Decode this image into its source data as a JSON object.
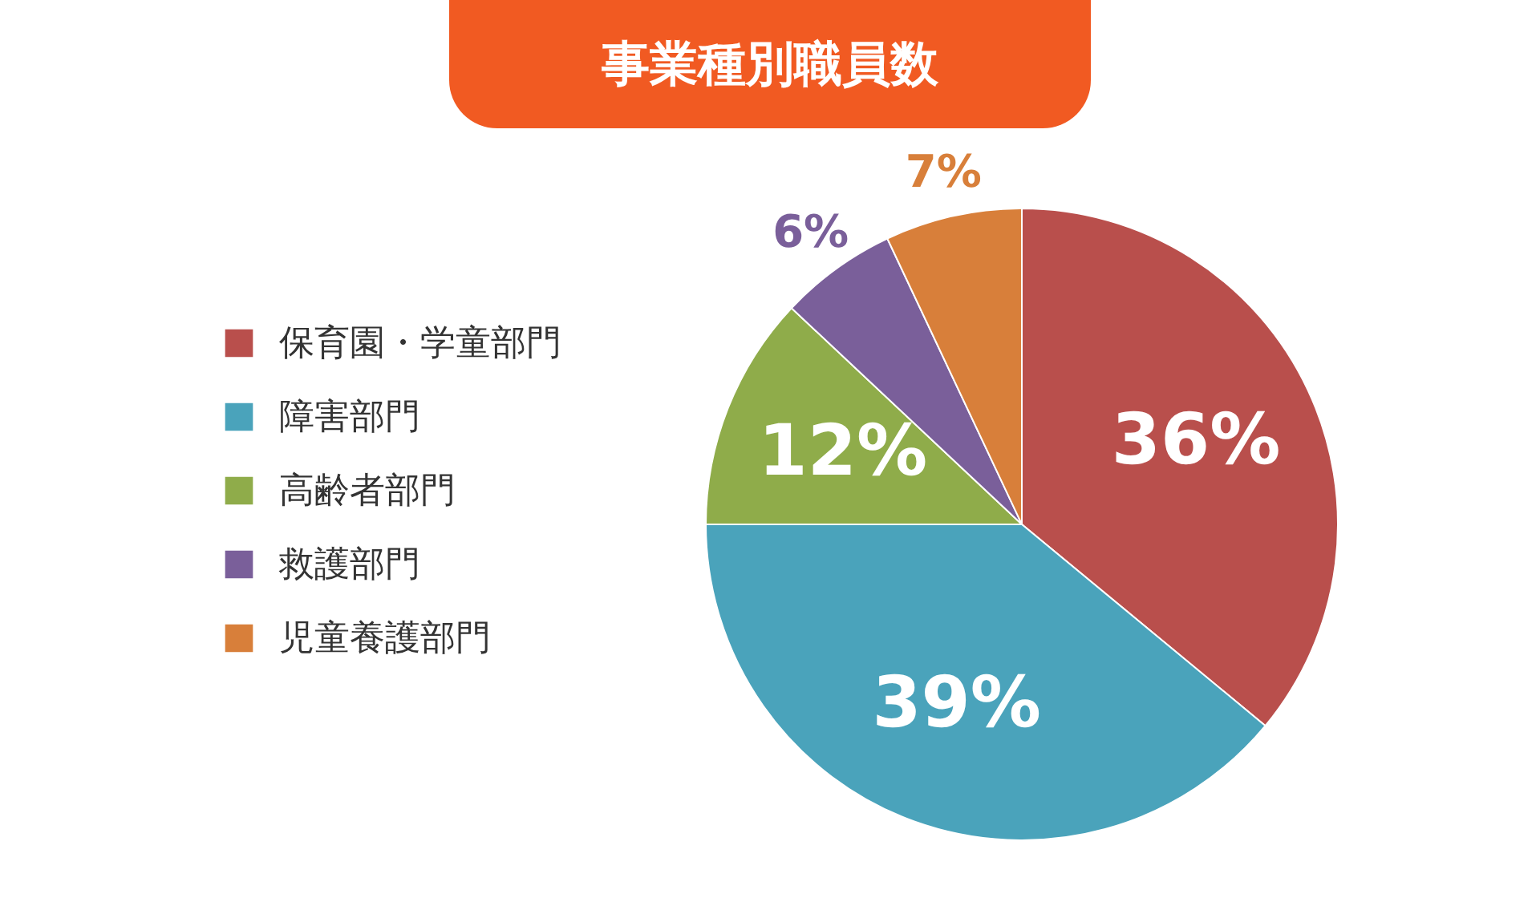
{
  "chart_data": {
    "type": "pie",
    "title": "事業種別職員数",
    "categories": [
      "保育園・学童部門",
      "障害部門",
      "高齢者部門",
      "救護部門",
      "児童養護部門"
    ],
    "values": [
      36,
      39,
      12,
      6,
      7
    ],
    "colors": [
      "#b94f4c",
      "#4aa3bb",
      "#8fac4a",
      "#7a5f9a",
      "#d87f3a"
    ],
    "value_labels": [
      "36%",
      "39%",
      "12%",
      "6%",
      "7%"
    ],
    "legend": "left"
  }
}
